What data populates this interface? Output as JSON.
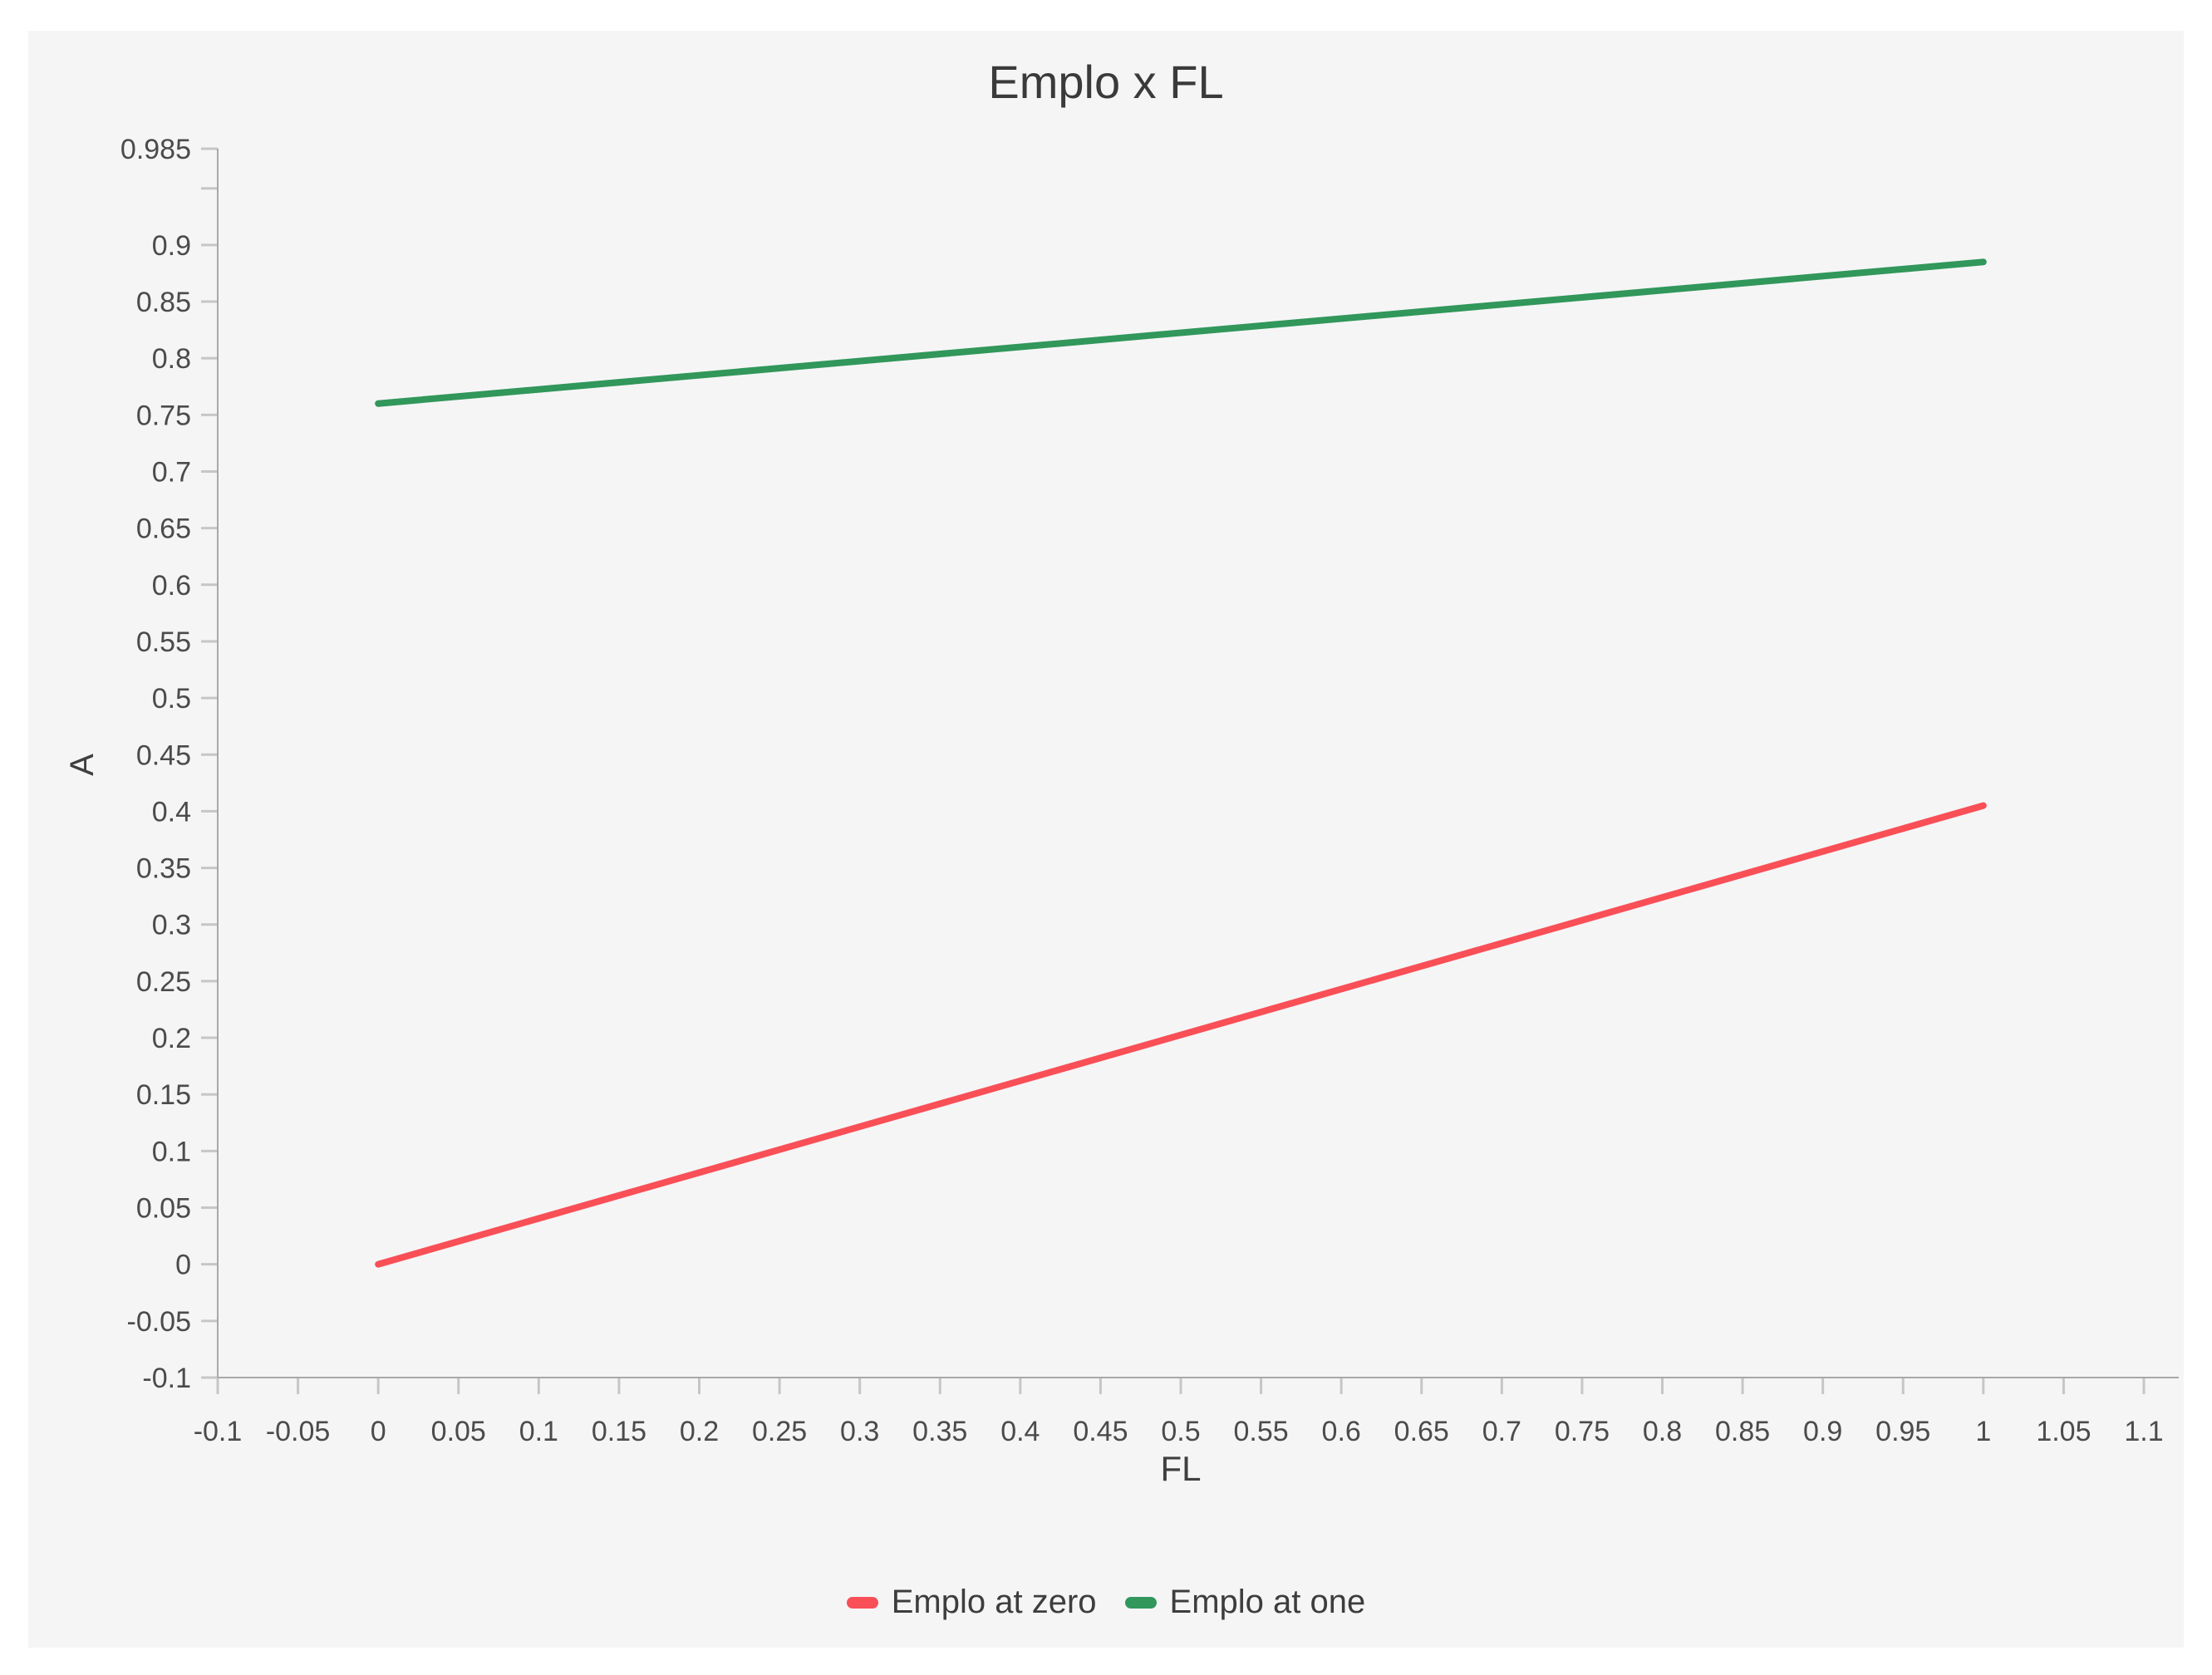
{
  "chart_data": {
    "type": "line",
    "title": "Emplo x FL",
    "xlabel": "FL",
    "ylabel": "A",
    "xlim": [
      -0.1,
      1.1
    ],
    "ylim": [
      -0.1,
      0.985
    ],
    "grid": false,
    "legend_position": "bottom-center",
    "x_ticks": [
      -0.1,
      -0.05,
      0,
      0.05,
      0.1,
      0.15,
      0.2,
      0.25,
      0.3,
      0.35,
      0.4,
      0.45,
      0.5,
      0.55,
      0.6,
      0.65,
      0.7,
      0.75,
      0.8,
      0.85,
      0.9,
      0.95,
      1,
      1.05,
      1.1
    ],
    "x_tick_labels": [
      "-0.1",
      "-0.05",
      "0",
      "0.05",
      "0.1",
      "0.15",
      "0.2",
      "0.25",
      "0.3",
      "0.35",
      "0.4",
      "0.45",
      "0.5",
      "0.55",
      "0.6",
      "0.65",
      "0.7",
      "0.75",
      "0.8",
      "0.85",
      "0.9",
      "0.95",
      "1",
      "1.05",
      "1.1"
    ],
    "y_ticks": [
      0.985,
      0.95,
      0.9,
      0.85,
      0.8,
      0.75,
      0.7,
      0.65,
      0.6,
      0.55,
      0.5,
      0.45,
      0.4,
      0.35,
      0.3,
      0.25,
      0.2,
      0.15,
      0.1,
      0.05,
      0,
      -0.05,
      -0.1
    ],
    "y_tick_labels": [
      "0.985",
      "",
      "0.9",
      "0.85",
      "0.8",
      "0.75",
      "0.7",
      "0.65",
      "0.6",
      "0.55",
      "0.5",
      "0.45",
      "0.4",
      "0.35",
      "0.3",
      "0.25",
      "0.2",
      "0.15",
      "0.1",
      "0.05",
      "0",
      "-0.05",
      "-0.1"
    ],
    "series": [
      {
        "name": "Emplo at zero",
        "color": "#F94F57",
        "x": [
          0,
          1
        ],
        "y": [
          0,
          0.405
        ]
      },
      {
        "name": "Emplo at one",
        "color": "#31975A",
        "x": [
          0,
          1
        ],
        "y": [
          0.76,
          0.885
        ]
      }
    ]
  },
  "colors": {
    "page_background": "#ffffff",
    "panel_background": "#f5f5f6",
    "axis_line": "#a8a8a8",
    "tick_mark": "#c6c6c6",
    "tick_text": "#4b4b4b",
    "title_text": "#3a3a3a"
  }
}
